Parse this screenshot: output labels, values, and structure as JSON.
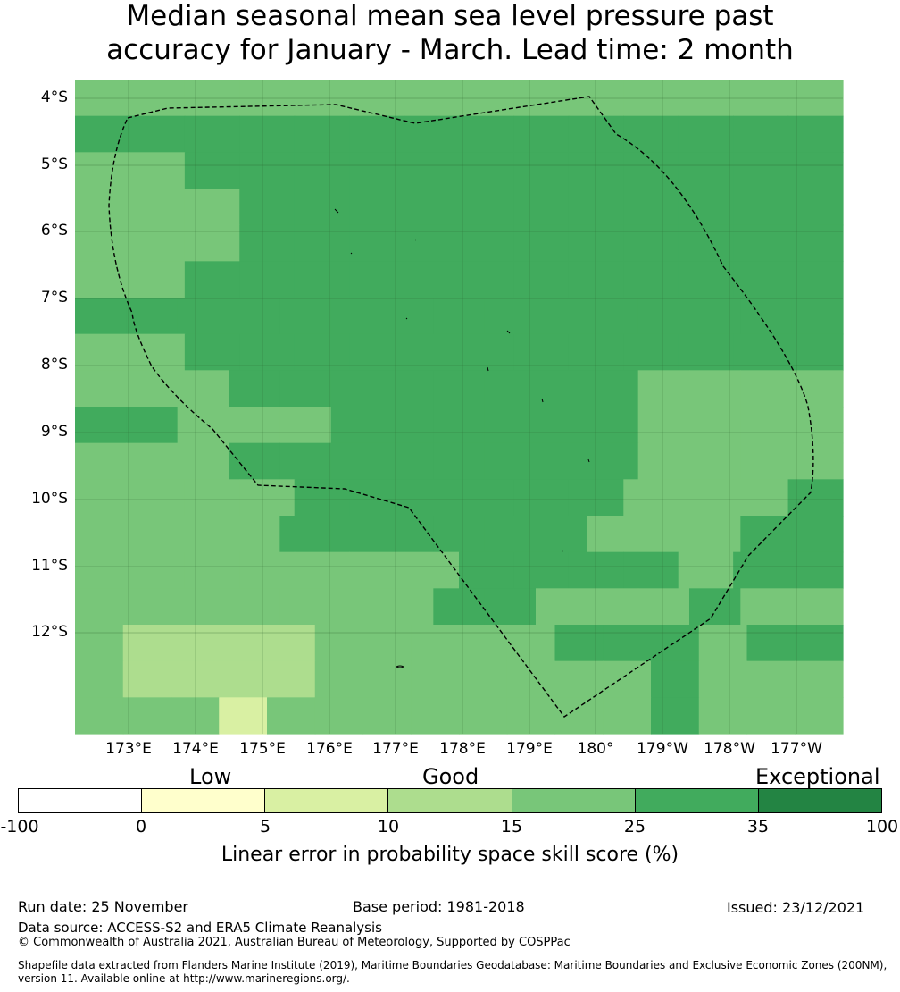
{
  "title_line1": "Median seasonal mean sea level pressure past",
  "title_line2": "accuracy for January - March. Lead time: 2 month",
  "lat_labels": [
    "4°S",
    "5°S",
    "6°S",
    "7°S",
    "8°S",
    "9°S",
    "10°S",
    "11°S",
    "12°S"
  ],
  "lon_labels": [
    "173°E",
    "174°E",
    "175°E",
    "176°E",
    "177°E",
    "178°E",
    "179°E",
    "180°",
    "179°W",
    "178°W",
    "177°W"
  ],
  "colorbar": {
    "categories": [
      "Low",
      "Good",
      "Exceptional"
    ],
    "ticks": [
      "-100",
      "0",
      "5",
      "10",
      "15",
      "25",
      "35",
      "100"
    ],
    "colors": [
      "#ffffff",
      "#ffffcc",
      "#d9f0a3",
      "#addd8e",
      "#78c679",
      "#41ab5d",
      "#238443"
    ],
    "label": "Linear error in probability space skill score (%)"
  },
  "footer": {
    "run_date": "Run date: 25 November",
    "base_period": "Base period: 1981-2018",
    "issued": "Issued: 23/12/2021",
    "data_source": "Data source: ACCESS-S2 and ERA5 Climate Reanalysis",
    "copyright": "© Commonwealth of Australia 2021, Australian Bureau of Meteorology, Supported by COSPPac",
    "shapefile_line1": "Shapefile data extracted from Flanders Marine Institute (2019), Maritime Boundaries Geodatabase: Maritime Boundaries and Exclusive Economic Zones (200NM),",
    "shapefile_line2": "version 11. Available online at http://www.marineregions.org/."
  },
  "grid_cells": [
    "ffffffffffffff",
    "gggggggggggggg",
    "ffgggggggggggg",
    "fffggggggggggg",
    "fffggggggggggg",
    "ffgggggggggggg",
    "ggggggggggggggg",
    "ffgggggggggggg",
    "fffggggggggffff",
    "ggfffggggggffff",
    "fffggggggggffff",
    "ffffggggggfffg",
    "ffffggggggfffgg",
    "fffffffggggfgg",
    "fffffffggfffgff",
    "fllllfffffgggfgg",
    "fllllfffffffgfff",
    "fffyffffffffgfff"
  ]
}
